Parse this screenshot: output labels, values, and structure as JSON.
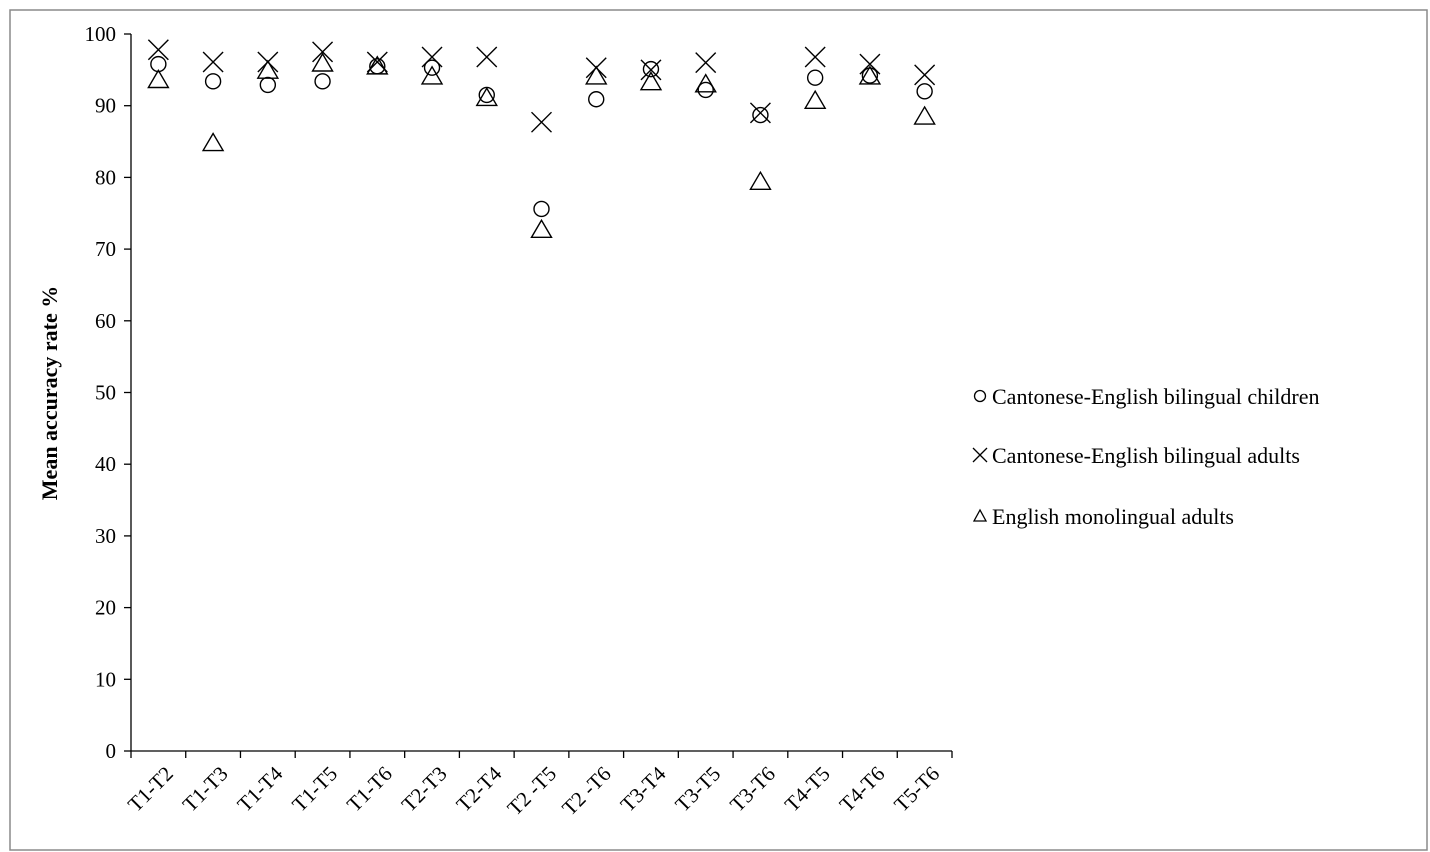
{
  "chart_data": {
    "type": "scatter",
    "ylabel": "Mean accuracy rate %",
    "xlabel": "",
    "ylim": [
      0,
      100
    ],
    "y_ticks": [
      0,
      10,
      20,
      30,
      40,
      50,
      60,
      70,
      80,
      90,
      100
    ],
    "grid": false,
    "legend_position": "right",
    "categories": [
      "T1-T2",
      "T1-T3",
      "T1-T4",
      "T1-T5",
      "T1-T6",
      "T2-T3",
      "T2-T4",
      "T2 -T5",
      "T2 -T6",
      "T3-T4",
      "T3-T5",
      "T3-T6",
      "T4-T5",
      "T4-T6",
      "T5-T6"
    ],
    "series": [
      {
        "name": "Cantonese-English bilingual children",
        "marker": "circle",
        "values": [
          95.8,
          93.4,
          92.9,
          93.4,
          95.5,
          95.3,
          91.5,
          75.6,
          90.9,
          95.1,
          92.2,
          88.7,
          93.9,
          94.2,
          92.0
        ]
      },
      {
        "name": "Cantonese-English bilingual adults",
        "marker": "x",
        "values": [
          97.8,
          96.1,
          96.1,
          97.5,
          96.1,
          96.8,
          96.8,
          87.7,
          95.3,
          95.0,
          96.0,
          89.0,
          96.8,
          95.8,
          94.3
        ]
      },
      {
        "name": "English monolingual adults",
        "marker": "triangle",
        "values": [
          93.6,
          84.8,
          94.9,
          95.9,
          95.5,
          94.1,
          91.1,
          72.7,
          94.1,
          93.3,
          93.0,
          79.4,
          90.7,
          94.1,
          88.5
        ]
      }
    ],
    "colors": {
      "marker": "#000000",
      "axis": "#000000",
      "frame": "#808080",
      "background": "#ffffff"
    }
  }
}
